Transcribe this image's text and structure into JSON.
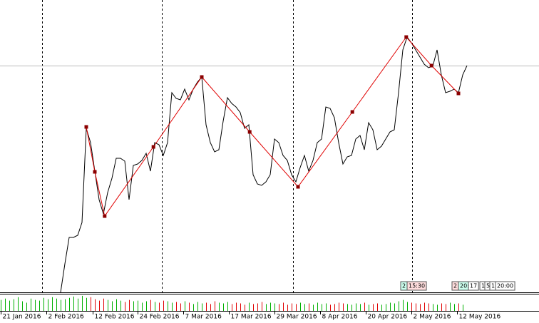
{
  "chart_data": {
    "type": "line",
    "xlim": [
      0,
      126
    ],
    "ylim": [
      0,
      410
    ],
    "volume_ylim": [
      0,
      25
    ],
    "xticks": [
      {
        "value": 0,
        "label": "21 Jan 2016"
      },
      {
        "value": 10.7,
        "label": "2 Feb 2016"
      },
      {
        "value": 21.5,
        "label": "12 Feb 2016"
      },
      {
        "value": 32,
        "label": "24 Feb 2016"
      },
      {
        "value": 42.7,
        "label": "7 Mar 2016"
      },
      {
        "value": 53.3,
        "label": "17 Mar 2016"
      },
      {
        "value": 64,
        "label": "29 Mar 2016"
      },
      {
        "value": 74.7,
        "label": "8 Apr 2016"
      },
      {
        "value": 85.3,
        "label": "20 Apr 2016"
      },
      {
        "value": 96,
        "label": "2 May 2016"
      },
      {
        "value": 106.7,
        "label": "12 May 2016"
      }
    ],
    "separators": [
      9.7,
      37.7,
      68.3,
      96.2
    ],
    "series": [
      {
        "color": "#000000",
        "x": [
          14,
          15,
          16,
          17,
          18,
          19,
          20,
          21,
          22,
          23,
          24,
          25,
          26,
          27,
          28,
          29,
          30,
          31,
          32,
          33,
          34,
          35,
          36,
          37,
          38,
          39,
          40,
          41,
          42,
          43,
          44,
          45,
          46,
          47,
          48,
          49,
          50,
          51,
          52,
          53,
          54,
          55,
          56,
          57,
          58,
          59,
          60,
          61,
          62,
          63,
          64,
          65,
          66,
          67,
          68,
          69,
          70,
          71,
          72,
          73,
          74,
          75,
          76,
          77,
          78,
          79,
          80,
          81,
          82,
          83,
          84,
          85,
          86,
          87,
          88,
          89,
          90,
          91,
          92,
          93,
          94,
          95,
          96,
          97,
          98,
          99,
          100,
          101,
          102,
          103,
          104,
          105,
          106,
          107,
          108,
          109
        ],
        "values": [
          0,
          40,
          77,
          77,
          80,
          98,
          230,
          210,
          170,
          130,
          110,
          140,
          160,
          188,
          188,
          184,
          130,
          178,
          180,
          185,
          195,
          170,
          210,
          207,
          192,
          210,
          280,
          272,
          270,
          285,
          270,
          285,
          295,
          302,
          235,
          210,
          197,
          200,
          240,
          273,
          265,
          260,
          252,
          230,
          235,
          165,
          152,
          150,
          155,
          165,
          215,
          210,
          192,
          185,
          165,
          155,
          175,
          192,
          170,
          185,
          210,
          215,
          260,
          258,
          245,
          210,
          180,
          190,
          192,
          215,
          220,
          200,
          238,
          228,
          200,
          205,
          215,
          225,
          228,
          280,
          340,
          358,
          350,
          340,
          330,
          320,
          315,
          317,
          340,
          305,
          280,
          282,
          285,
          280,
          305,
          318
        ]
      },
      {
        "color": "#e00000",
        "x": [
          20,
          22,
          24.3,
          35.7,
          47,
          58.2,
          69.5,
          82.2,
          94.8,
          100.7,
          107
        ],
        "values": [
          232,
          169,
          107,
          204,
          302,
          225,
          148,
          253,
          358,
          318,
          279
        ]
      }
    ],
    "volume": {
      "up_color": "#00b000",
      "down_color": "#e00000",
      "x": [
        0,
        1,
        2,
        3,
        4,
        5,
        6,
        7,
        8,
        9,
        10,
        11,
        12,
        13,
        14,
        15,
        16,
        17,
        18,
        19,
        20,
        21,
        22,
        23,
        24,
        25,
        26,
        27,
        28,
        29,
        30,
        31,
        32,
        33,
        34,
        35,
        36,
        37,
        38,
        39,
        40,
        41,
        42,
        43,
        44,
        45,
        46,
        47,
        48,
        49,
        50,
        51,
        52,
        53,
        54,
        55,
        56,
        57,
        58,
        59,
        60,
        61,
        62,
        63,
        64,
        65,
        66,
        67,
        68,
        69,
        70,
        71,
        72,
        73,
        74,
        75,
        76,
        77,
        78,
        79,
        80,
        81,
        82,
        83,
        84,
        85,
        86,
        87,
        88,
        89,
        90,
        91,
        92,
        93,
        94,
        95,
        96,
        97,
        98,
        99,
        100,
        101,
        102,
        103,
        104,
        105,
        106,
        107,
        108
      ],
      "values": [
        16,
        18,
        15,
        17,
        20,
        14,
        12,
        18,
        16,
        15,
        19,
        17,
        20,
        18,
        16,
        17,
        19,
        21,
        18,
        22,
        19,
        20,
        17,
        15,
        18,
        16,
        14,
        17,
        15,
        13,
        16,
        14,
        15,
        12,
        14,
        16,
        13,
        12,
        15,
        14,
        12,
        13,
        11,
        14,
        12,
        10,
        13,
        11,
        12,
        10,
        14,
        12,
        11,
        13,
        10,
        12,
        11,
        9,
        12,
        10,
        11,
        13,
        10,
        12,
        11,
        10,
        12,
        9,
        11,
        10,
        12,
        10,
        11,
        9,
        12,
        10,
        11,
        9,
        10,
        12,
        11,
        10,
        9,
        11,
        10,
        12,
        9,
        10,
        11,
        9,
        10,
        12,
        11,
        14,
        16,
        13,
        12,
        11,
        10,
        12,
        11,
        10,
        9,
        11,
        10,
        12,
        10,
        11,
        9
      ]
    },
    "tags": [
      "2",
      "15:30",
      "2",
      "20:",
      "17",
      "1",
      "5",
      "1",
      "20:00"
    ]
  }
}
